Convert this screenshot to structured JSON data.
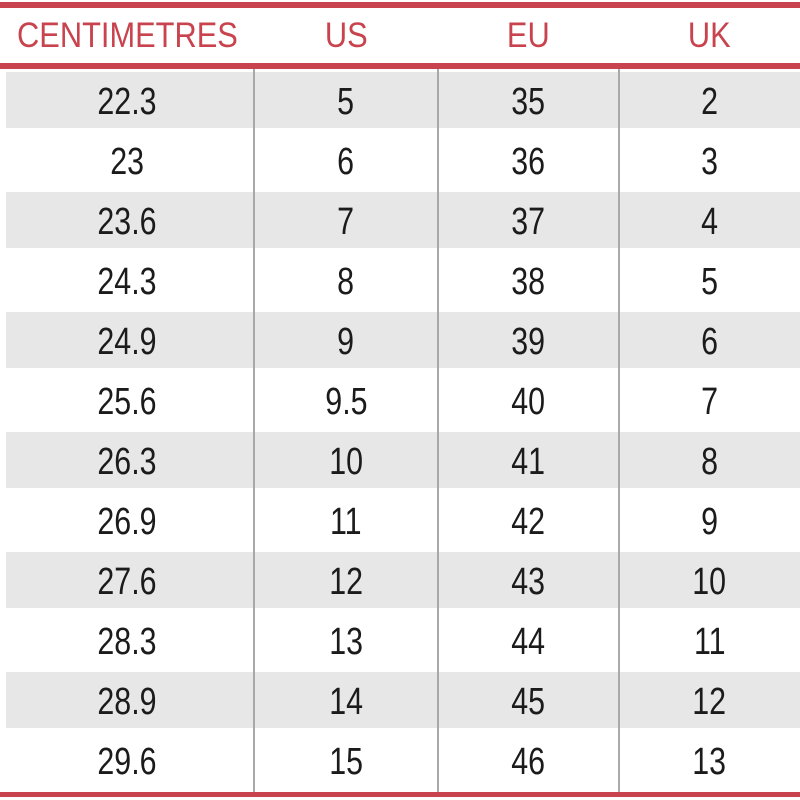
{
  "table": {
    "headers": [
      "CENTIMETRES",
      "US",
      "EU",
      "UK"
    ],
    "rows": [
      [
        "22.3",
        "5",
        "35",
        "2"
      ],
      [
        "23",
        "6",
        "36",
        "3"
      ],
      [
        "23.6",
        "7",
        "37",
        "4"
      ],
      [
        "24.3",
        "8",
        "38",
        "5"
      ],
      [
        "24.9",
        "9",
        "39",
        "6"
      ],
      [
        "25.6",
        "9.5",
        "40",
        "7"
      ],
      [
        "26.3",
        "10",
        "41",
        "8"
      ],
      [
        "26.9",
        "11",
        "42",
        "9"
      ],
      [
        "27.6",
        "12",
        "43",
        "10"
      ],
      [
        "28.3",
        "13",
        "44",
        "11"
      ],
      [
        "28.9",
        "14",
        "45",
        "12"
      ],
      [
        "29.6",
        "15",
        "46",
        "13"
      ]
    ],
    "colors": {
      "accent_red": "#c8434d",
      "stripe_gray": "#e8e7e7",
      "separator_gray": "#a9a9a9",
      "text_black": "#1b1b1b"
    }
  }
}
